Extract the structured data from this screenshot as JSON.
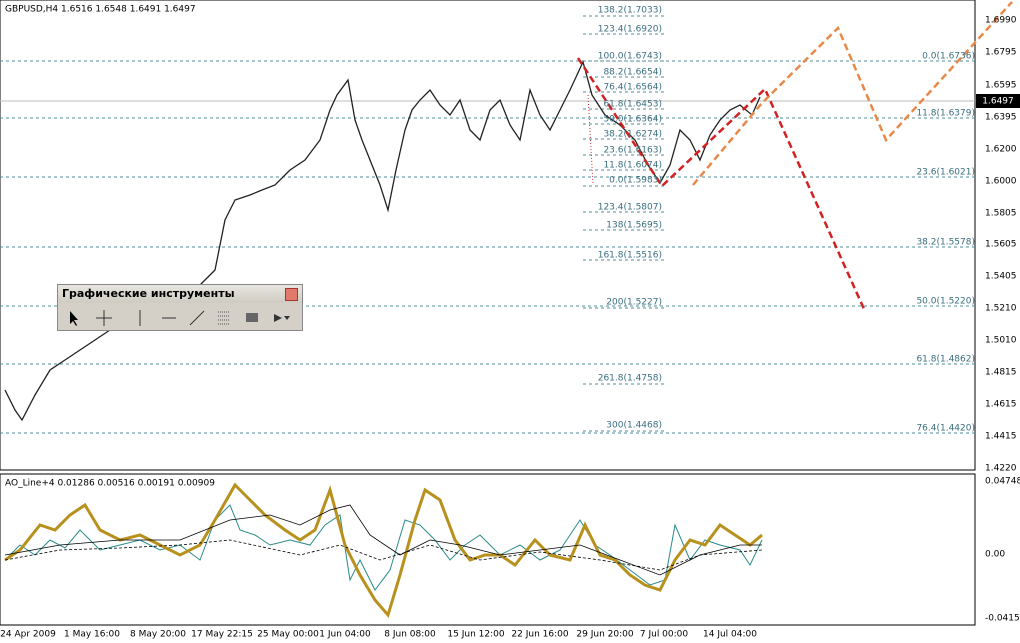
{
  "chart_header": "GBPUSD,H4  1.6516 1.6548 1.6491 1.6497",
  "price_axis": [
    "1.6990",
    "1.6795",
    "1.6595",
    "1.6395",
    "1.6200",
    "1.6000",
    "1.5805",
    "1.5605",
    "1.5405",
    "1.5210",
    "1.5010",
    "1.4815",
    "1.4615",
    "1.4415",
    "1.4220"
  ],
  "current_price": "1.6497",
  "fib_right": [
    "0.0(1.6736)",
    "11.8(1.6379)",
    "23.6(1.6021)",
    "38.2(1.5578)",
    "50.0(1.5220)",
    "61.8(1.4862)",
    "76.4(1.4420)"
  ],
  "fib_left": [
    "138.2(1.7033)",
    "123.4(1.6920)",
    "100.0(1.6743)",
    "88.2(1.6654)",
    "76.4(1.6564)",
    "61.8(1.6453)",
    "50.0(1.6364)",
    "38.2(1.6274)",
    "23.6(1.6163)",
    "11.8(1.6074)",
    "0.0(1.5983)",
    "123.4(1.5807)",
    "138(1.5695)",
    "161.8(1.5516)",
    "200(1.5227)",
    "261.8(1.4758)",
    "300(1.4468)"
  ],
  "toolbar": {
    "title": "Графические инструменты"
  },
  "indicator": {
    "header": "AO_Line+4 0.01286 0.00516 0.00191 0.00909",
    "axis": [
      "0.04748",
      "0.00",
      "-0.04154"
    ]
  },
  "time_axis": [
    "24 Apr 2009",
    "1 May 16:00",
    "8 May 20:00",
    "17 May 22:15",
    "25 May 00:00",
    "1 Jun 04:00",
    "8 Jun 08:00",
    "15 Jun 12:00",
    "22 Jun 16:00",
    "29 Jun 20:00",
    "7 Jul 00:00",
    "14 Jul 04:00"
  ]
}
